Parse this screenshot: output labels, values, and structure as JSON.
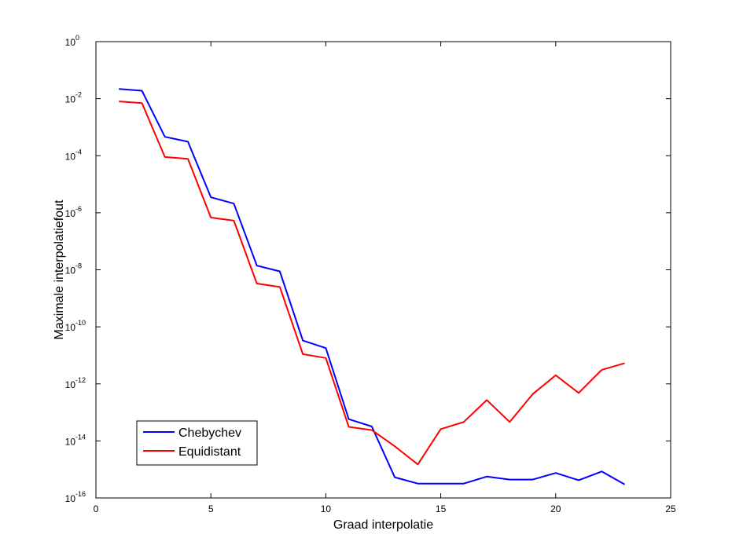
{
  "figure": {
    "background": "#ffffff"
  },
  "chart_data": {
    "type": "line",
    "xlabel": "Graad interpolatie",
    "ylabel": "Maximale interpolatiefout",
    "xlim": [
      0,
      25
    ],
    "ylim": [
      1e-16,
      1
    ],
    "yscale": "log",
    "grid": false,
    "legend_placement": "bottom-left",
    "x_ticks": [
      0,
      5,
      10,
      15,
      20,
      25
    ],
    "x_tick_labels": [
      "0",
      "5",
      "10",
      "15",
      "20",
      "25"
    ],
    "y_ticks": [
      1e-16,
      1e-14,
      1e-12,
      1e-10,
      1e-08,
      1e-06,
      0.0001,
      0.01,
      1
    ],
    "y_tick_labels": [
      {
        "base": "10",
        "exp": "-16"
      },
      {
        "base": "10",
        "exp": "-14"
      },
      {
        "base": "10",
        "exp": "-12"
      },
      {
        "base": "10",
        "exp": "-10"
      },
      {
        "base": "10",
        "exp": "-8"
      },
      {
        "base": "10",
        "exp": "-6"
      },
      {
        "base": "10",
        "exp": "-4"
      },
      {
        "base": "10",
        "exp": "-2"
      },
      {
        "base": "10",
        "exp": "0"
      }
    ],
    "x": [
      1,
      2,
      3,
      4,
      5,
      6,
      7,
      8,
      9,
      10,
      11,
      12,
      13,
      14,
      15,
      16,
      17,
      18,
      19,
      20,
      21,
      22,
      23
    ],
    "series": [
      {
        "name": "Chebychev",
        "color": "#0000ff",
        "values": [
          0.022,
          0.019,
          0.00046,
          0.00031,
          3.5e-06,
          2.1e-06,
          1.4e-08,
          8.8e-09,
          3.3e-11,
          1.8e-11,
          5.8e-14,
          3.2e-14,
          5.3e-16,
          3.2e-16,
          3.2e-16,
          3.2e-16,
          5.6e-16,
          4.4e-16,
          4.4e-16,
          7.5e-16,
          4.2e-16,
          8.5e-16,
          3e-16
        ]
      },
      {
        "name": "Equidistant",
        "color": "#ff0000",
        "values": [
          0.008,
          0.007,
          9e-05,
          7.8e-05,
          6.8e-07,
          5.3e-07,
          3.3e-09,
          2.5e-09,
          1.1e-11,
          8.1e-12,
          3.1e-14,
          2.4e-14,
          6.5e-15,
          1.5e-15,
          2.6e-14,
          4.6e-14,
          2.7e-13,
          4.6e-14,
          4.4e-13,
          2e-12,
          4.8e-13,
          3.1e-12,
          5.3e-12
        ]
      }
    ]
  }
}
